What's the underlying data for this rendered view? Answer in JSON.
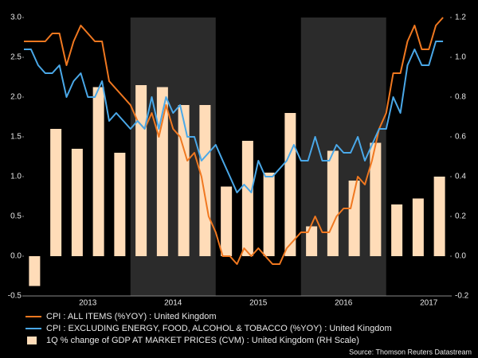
{
  "chart_data": {
    "type": "line_bar",
    "x": [
      2012.75,
      2012.833,
      2012.917,
      2013,
      2013.083,
      2013.167,
      2013.25,
      2013.333,
      2013.417,
      2013.5,
      2013.583,
      2013.667,
      2013.75,
      2013.833,
      2013.917,
      2014,
      2014.083,
      2014.167,
      2014.25,
      2014.333,
      2014.417,
      2014.5,
      2014.583,
      2014.667,
      2014.75,
      2014.833,
      2014.917,
      2015,
      2015.083,
      2015.167,
      2015.25,
      2015.333,
      2015.417,
      2015.5,
      2015.583,
      2015.667,
      2015.75,
      2015.833,
      2015.917,
      2016,
      2016.083,
      2016.167,
      2016.25,
      2016.333,
      2016.417,
      2016.5,
      2016.583,
      2016.667,
      2016.75,
      2016.833,
      2016.917,
      2017,
      2017.083,
      2017.167,
      2017.25,
      2017.333,
      2017.417,
      2017.5,
      2017.583,
      2017.667
    ],
    "series": [
      {
        "name": "CPI : ALL ITEMS (%YOY) : United Kingdom",
        "color": "#f07820",
        "values": [
          2.7,
          2.7,
          2.7,
          2.7,
          2.8,
          2.8,
          2.4,
          2.7,
          2.9,
          2.8,
          2.7,
          2.7,
          2.2,
          2.1,
          2.0,
          1.9,
          1.7,
          1.6,
          1.8,
          1.5,
          1.9,
          1.6,
          1.5,
          1.2,
          1.3,
          1.0,
          0.5,
          0.3,
          0.0,
          0.0,
          -0.1,
          0.1,
          0.0,
          0.1,
          0.0,
          -0.1,
          -0.1,
          0.1,
          0.2,
          0.3,
          0.3,
          0.5,
          0.3,
          0.3,
          0.5,
          0.6,
          0.6,
          1.0,
          0.9,
          1.2,
          1.6,
          1.8,
          2.3,
          2.3,
          2.7,
          2.9,
          2.6,
          2.6,
          2.9,
          3.0
        ]
      },
      {
        "name": "CPI : EXCLUDING ENERGY, FOOD, ALCOHOL & TOBACCO (%YOY) : United Kingdom",
        "color": "#4aa8e8",
        "values": [
          2.6,
          2.6,
          2.4,
          2.3,
          2.3,
          2.4,
          2.0,
          2.2,
          2.3,
          2.0,
          2.0,
          2.2,
          1.7,
          1.8,
          1.7,
          1.6,
          1.7,
          1.6,
          2.0,
          1.6,
          2.0,
          1.8,
          1.9,
          1.5,
          1.5,
          1.2,
          1.3,
          1.4,
          1.2,
          1.0,
          0.8,
          0.9,
          0.8,
          1.2,
          1.0,
          1.0,
          1.1,
          1.2,
          1.4,
          1.2,
          1.2,
          1.5,
          1.2,
          1.2,
          1.4,
          1.3,
          1.3,
          1.5,
          1.2,
          1.4,
          1.6,
          1.6,
          2.0,
          1.8,
          2.4,
          2.6,
          2.4,
          2.4,
          2.7,
          2.7
        ]
      },
      {
        "name": "1Q % change of GDP AT MARKET PRICES (CVM) : United Kingdom (RH Scale)",
        "color": "#ffdcb8",
        "axis": "y2",
        "type": "bar",
        "x": [
          2012.875,
          2013.125,
          2013.375,
          2013.625,
          2013.875,
          2014.125,
          2014.375,
          2014.625,
          2014.875,
          2015.125,
          2015.375,
          2015.625,
          2015.875,
          2016.125,
          2016.375,
          2016.625,
          2016.875,
          2017.125,
          2017.375,
          2017.625
        ],
        "values": [
          -0.15,
          0.64,
          0.54,
          0.85,
          0.52,
          0.86,
          0.85,
          0.76,
          0.76,
          0.35,
          0.58,
          0.42,
          0.72,
          0.15,
          0.53,
          0.38,
          0.57,
          0.26,
          0.29,
          0.4
        ]
      }
    ],
    "xlim": [
      2012.75,
      2017.75
    ],
    "xticks": [
      {
        "value": 2013.5,
        "label": "2013"
      },
      {
        "value": 2014.5,
        "label": "2014"
      },
      {
        "value": 2015.5,
        "label": "2015"
      },
      {
        "value": 2016.5,
        "label": "2016"
      },
      {
        "value": 2017.5,
        "label": "2017"
      }
    ],
    "shaded_spans": [
      [
        2014,
        2015
      ],
      [
        2016,
        2017
      ]
    ],
    "ylim": [
      -0.5,
      3.0
    ],
    "yticks": [
      {
        "value": 3.0,
        "label": "3.0"
      },
      2.5,
      {
        "value": 2.0,
        "label": "2.0"
      },
      1.5,
      {
        "value": 1.0,
        "label": "1.0"
      },
      0.5,
      {
        "value": 0.0,
        "label": "0.0"
      },
      -0.5
    ],
    "y2lim": [
      -0.2,
      1.2
    ],
    "y2ticks": [
      1.2,
      {
        "value": 1.0,
        "label": "1.0"
      },
      0.8,
      0.6,
      0.4,
      0.2,
      {
        "value": 0.0,
        "label": "0.0"
      },
      -0.2
    ],
    "source": "Source: Thomson Reuters Datastream"
  }
}
